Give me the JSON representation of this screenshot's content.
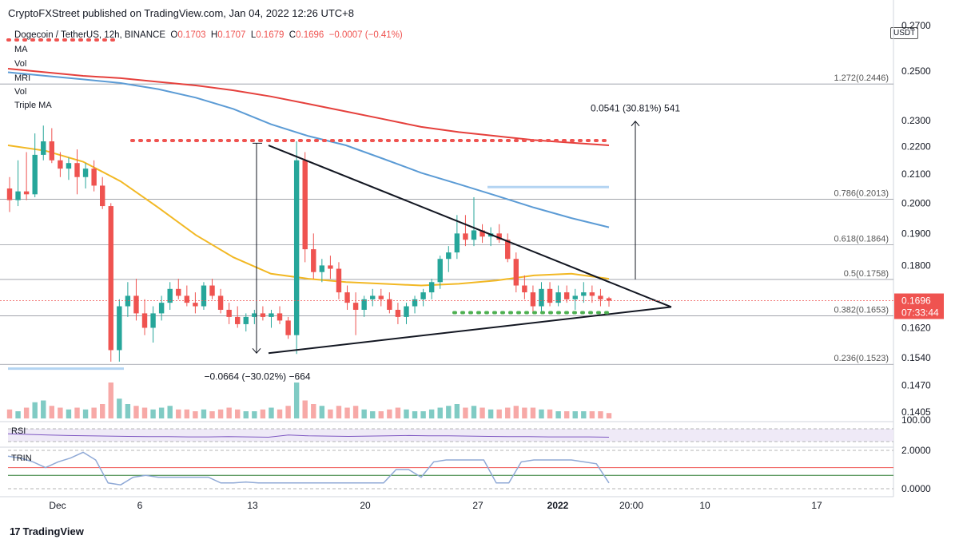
{
  "header": {
    "published": "CryptoFXStreet published on TradingView.com, Jan 04, 2022 12:26 UTC+8"
  },
  "legend": {
    "symbol": "Dogecoin / TetherUS, 12h, BINANCE",
    "o_label": "O",
    "o": "0.1703",
    "h_label": "H",
    "h": "0.1707",
    "l_label": "L",
    "l": "0.1679",
    "c_label": "C",
    "c": "0.1696",
    "change": "−0.0007 (−0.41%)",
    "indicators": [
      "MA",
      "Vol",
      "MRI",
      "Vol",
      "Triple MA"
    ]
  },
  "axis": {
    "currency": "USDT",
    "price_ticks": [
      "0.2500",
      "0.2300",
      "0.2200",
      "0.2100",
      "0.2000",
      "0.1900",
      "0.1800",
      "0.1620",
      "0.1540",
      "0.1470",
      "0.1405"
    ],
    "top_partial": "0.2700",
    "last_price": "0.1696",
    "countdown": "07:33:44",
    "rsi_tick": "100.00",
    "trin_ticks": [
      "2.0000",
      "0.0000"
    ],
    "time_ticks": [
      "Dec",
      "6",
      "13",
      "20",
      "27",
      "2022",
      "20:00",
      "10",
      "17"
    ]
  },
  "fib": [
    {
      "label": "1.272(0.2446)",
      "value": 0.2446
    },
    {
      "label": "0.786(0.2013)",
      "value": 0.2013
    },
    {
      "label": "0.618(0.1864)",
      "value": 0.1864
    },
    {
      "label": "0.5(0.1758)",
      "value": 0.1758
    },
    {
      "label": "0.382(0.1653)",
      "value": 0.1653
    },
    {
      "label": "0.236(0.1523)",
      "value": 0.1523
    }
  ],
  "annotations": {
    "target": "0.0541 (30.81%) 541",
    "drop": "−0.0664 (−30.02%) −664"
  },
  "panes": {
    "rsi_label": "RSI",
    "trin_label": "TRIN"
  },
  "footer": {
    "brand": "TradingView"
  },
  "colors": {
    "up": "#26a69a",
    "down": "#ef5350",
    "ma_red": "#e5403c",
    "ma_blue": "#5b9bd5",
    "ma_yellow": "#f2b824",
    "rsi": "#7e57c2",
    "trin": "#8fa9d6"
  },
  "chart_data": {
    "type": "candlestick",
    "title": "Dogecoin / TetherUS, 12h, BINANCE",
    "pattern": "symmetrical triangle",
    "candles": [
      {
        "o": 0.205,
        "h": 0.209,
        "l": 0.197,
        "c": 0.201
      },
      {
        "o": 0.201,
        "h": 0.215,
        "l": 0.199,
        "c": 0.204
      },
      {
        "o": 0.204,
        "h": 0.218,
        "l": 0.201,
        "c": 0.203
      },
      {
        "o": 0.203,
        "h": 0.225,
        "l": 0.202,
        "c": 0.217
      },
      {
        "o": 0.217,
        "h": 0.228,
        "l": 0.215,
        "c": 0.222
      },
      {
        "o": 0.222,
        "h": 0.227,
        "l": 0.214,
        "c": 0.215
      },
      {
        "o": 0.215,
        "h": 0.218,
        "l": 0.209,
        "c": 0.212
      },
      {
        "o": 0.212,
        "h": 0.216,
        "l": 0.208,
        "c": 0.214
      },
      {
        "o": 0.214,
        "h": 0.219,
        "l": 0.203,
        "c": 0.209
      },
      {
        "o": 0.209,
        "h": 0.214,
        "l": 0.205,
        "c": 0.212
      },
      {
        "o": 0.212,
        "h": 0.215,
        "l": 0.204,
        "c": 0.206
      },
      {
        "o": 0.206,
        "h": 0.209,
        "l": 0.198,
        "c": 0.199
      },
      {
        "o": 0.199,
        "h": 0.2,
        "l": 0.153,
        "c": 0.156
      },
      {
        "o": 0.156,
        "h": 0.17,
        "l": 0.153,
        "c": 0.168
      },
      {
        "o": 0.168,
        "h": 0.175,
        "l": 0.165,
        "c": 0.171
      },
      {
        "o": 0.171,
        "h": 0.176,
        "l": 0.164,
        "c": 0.166
      },
      {
        "o": 0.166,
        "h": 0.17,
        "l": 0.16,
        "c": 0.162
      },
      {
        "o": 0.162,
        "h": 0.168,
        "l": 0.158,
        "c": 0.166
      },
      {
        "o": 0.166,
        "h": 0.171,
        "l": 0.164,
        "c": 0.169
      },
      {
        "o": 0.169,
        "h": 0.175,
        "l": 0.167,
        "c": 0.173
      },
      {
        "o": 0.173,
        "h": 0.176,
        "l": 0.17,
        "c": 0.171
      },
      {
        "o": 0.171,
        "h": 0.174,
        "l": 0.168,
        "c": 0.169
      },
      {
        "o": 0.169,
        "h": 0.172,
        "l": 0.166,
        "c": 0.168
      },
      {
        "o": 0.168,
        "h": 0.175,
        "l": 0.167,
        "c": 0.174
      },
      {
        "o": 0.174,
        "h": 0.176,
        "l": 0.17,
        "c": 0.171
      },
      {
        "o": 0.171,
        "h": 0.173,
        "l": 0.166,
        "c": 0.167
      },
      {
        "o": 0.167,
        "h": 0.169,
        "l": 0.163,
        "c": 0.165
      },
      {
        "o": 0.165,
        "h": 0.168,
        "l": 0.162,
        "c": 0.163
      },
      {
        "o": 0.163,
        "h": 0.166,
        "l": 0.161,
        "c": 0.165
      },
      {
        "o": 0.165,
        "h": 0.167,
        "l": 0.163,
        "c": 0.166
      },
      {
        "o": 0.166,
        "h": 0.168,
        "l": 0.164,
        "c": 0.165
      },
      {
        "o": 0.165,
        "h": 0.167,
        "l": 0.162,
        "c": 0.166
      },
      {
        "o": 0.166,
        "h": 0.168,
        "l": 0.163,
        "c": 0.164
      },
      {
        "o": 0.164,
        "h": 0.165,
        "l": 0.159,
        "c": 0.16
      },
      {
        "o": 0.16,
        "h": 0.222,
        "l": 0.155,
        "c": 0.215
      },
      {
        "o": 0.215,
        "h": 0.218,
        "l": 0.181,
        "c": 0.185
      },
      {
        "o": 0.185,
        "h": 0.19,
        "l": 0.176,
        "c": 0.178
      },
      {
        "o": 0.178,
        "h": 0.182,
        "l": 0.175,
        "c": 0.18
      },
      {
        "o": 0.18,
        "h": 0.183,
        "l": 0.176,
        "c": 0.179
      },
      {
        "o": 0.179,
        "h": 0.181,
        "l": 0.17,
        "c": 0.172
      },
      {
        "o": 0.172,
        "h": 0.174,
        "l": 0.167,
        "c": 0.169
      },
      {
        "o": 0.169,
        "h": 0.172,
        "l": 0.16,
        "c": 0.167
      },
      {
        "o": 0.167,
        "h": 0.171,
        "l": 0.165,
        "c": 0.17
      },
      {
        "o": 0.17,
        "h": 0.173,
        "l": 0.168,
        "c": 0.171
      },
      {
        "o": 0.171,
        "h": 0.173,
        "l": 0.168,
        "c": 0.17
      },
      {
        "o": 0.17,
        "h": 0.172,
        "l": 0.166,
        "c": 0.167
      },
      {
        "o": 0.167,
        "h": 0.169,
        "l": 0.163,
        "c": 0.165
      },
      {
        "o": 0.165,
        "h": 0.169,
        "l": 0.163,
        "c": 0.168
      },
      {
        "o": 0.168,
        "h": 0.171,
        "l": 0.166,
        "c": 0.17
      },
      {
        "o": 0.17,
        "h": 0.173,
        "l": 0.168,
        "c": 0.172
      },
      {
        "o": 0.172,
        "h": 0.176,
        "l": 0.17,
        "c": 0.175
      },
      {
        "o": 0.175,
        "h": 0.183,
        "l": 0.173,
        "c": 0.182
      },
      {
        "o": 0.182,
        "h": 0.186,
        "l": 0.178,
        "c": 0.184
      },
      {
        "o": 0.184,
        "h": 0.196,
        "l": 0.182,
        "c": 0.19
      },
      {
        "o": 0.19,
        "h": 0.196,
        "l": 0.186,
        "c": 0.188
      },
      {
        "o": 0.188,
        "h": 0.202,
        "l": 0.186,
        "c": 0.191
      },
      {
        "o": 0.191,
        "h": 0.193,
        "l": 0.187,
        "c": 0.189
      },
      {
        "o": 0.189,
        "h": 0.192,
        "l": 0.186,
        "c": 0.19
      },
      {
        "o": 0.19,
        "h": 0.193,
        "l": 0.187,
        "c": 0.188
      },
      {
        "o": 0.188,
        "h": 0.19,
        "l": 0.181,
        "c": 0.182
      },
      {
        "o": 0.182,
        "h": 0.184,
        "l": 0.172,
        "c": 0.174
      },
      {
        "o": 0.174,
        "h": 0.177,
        "l": 0.17,
        "c": 0.172
      },
      {
        "o": 0.172,
        "h": 0.174,
        "l": 0.166,
        "c": 0.168
      },
      {
        "o": 0.168,
        "h": 0.175,
        "l": 0.166,
        "c": 0.173
      },
      {
        "o": 0.173,
        "h": 0.175,
        "l": 0.168,
        "c": 0.169
      },
      {
        "o": 0.169,
        "h": 0.174,
        "l": 0.168,
        "c": 0.172
      },
      {
        "o": 0.172,
        "h": 0.174,
        "l": 0.169,
        "c": 0.17
      },
      {
        "o": 0.17,
        "h": 0.173,
        "l": 0.167,
        "c": 0.171
      },
      {
        "o": 0.171,
        "h": 0.175,
        "l": 0.169,
        "c": 0.172
      },
      {
        "o": 0.172,
        "h": 0.174,
        "l": 0.169,
        "c": 0.171
      },
      {
        "o": 0.171,
        "h": 0.173,
        "l": 0.168,
        "c": 0.17
      },
      {
        "o": 0.1703,
        "h": 0.1707,
        "l": 0.1679,
        "c": 0.1696
      }
    ],
    "volume": [
      0.25,
      0.2,
      0.3,
      0.45,
      0.5,
      0.35,
      0.3,
      0.25,
      0.3,
      0.25,
      0.3,
      0.4,
      1.0,
      0.55,
      0.4,
      0.35,
      0.3,
      0.25,
      0.3,
      0.35,
      0.25,
      0.25,
      0.2,
      0.25,
      0.2,
      0.25,
      0.3,
      0.25,
      0.2,
      0.2,
      0.25,
      0.3,
      0.25,
      0.35,
      1.0,
      0.5,
      0.4,
      0.35,
      0.25,
      0.35,
      0.3,
      0.35,
      0.25,
      0.2,
      0.2,
      0.25,
      0.3,
      0.25,
      0.2,
      0.2,
      0.25,
      0.3,
      0.35,
      0.4,
      0.3,
      0.35,
      0.3,
      0.25,
      0.25,
      0.3,
      0.35,
      0.3,
      0.3,
      0.25,
      0.25,
      0.2,
      0.2,
      0.2,
      0.2,
      0.2,
      0.2,
      0.15
    ],
    "ma_red": [
      0.251,
      0.2495,
      0.248,
      0.247,
      0.2455,
      0.244,
      0.242,
      0.2395,
      0.2365,
      0.2335,
      0.2305,
      0.2275,
      0.2255,
      0.224,
      0.2225,
      0.2215,
      0.2205
    ],
    "ma_blue": [
      0.2495,
      0.248,
      0.2465,
      0.245,
      0.2425,
      0.239,
      0.2345,
      0.2285,
      0.224,
      0.2205,
      0.2155,
      0.2105,
      0.2065,
      0.2025,
      0.1985,
      0.195,
      0.192
    ],
    "ma_yellow": [
      0.2205,
      0.2185,
      0.2145,
      0.2075,
      0.1985,
      0.1895,
      0.1825,
      0.1775,
      0.176,
      0.175,
      0.1745,
      0.174,
      0.1745,
      0.1755,
      0.177,
      0.1775,
      0.176
    ],
    "triangle": {
      "apex_price": 0.1678,
      "upper_start": 0.2205,
      "lower_start": 0.1552
    },
    "resistance_dotted": 0.2223,
    "support_dotted": 0.1662,
    "rsi": [
      62,
      60,
      58,
      56,
      55,
      54,
      53,
      52,
      52,
      51,
      51,
      52,
      51,
      50,
      58,
      55,
      54,
      53,
      54,
      55,
      56,
      55,
      55,
      54,
      53,
      52,
      52,
      51,
      51,
      51,
      50
    ],
    "trin": [
      1.7,
      1.6,
      1.4,
      1.1,
      1.4,
      1.6,
      1.9,
      1.5,
      0.3,
      0.2,
      0.6,
      0.7,
      0.6,
      0.6,
      0.6,
      0.6,
      0.6,
      0.3,
      0.3,
      0.35,
      0.3,
      0.3,
      0.3,
      0.3,
      0.3,
      0.3,
      0.3,
      0.3,
      0.3,
      0.3,
      0.3,
      1.0,
      1.0,
      0.6,
      1.4,
      1.5,
      1.5,
      1.5,
      1.5,
      0.3,
      0.3,
      1.4,
      1.5,
      1.5,
      1.5,
      1.5,
      1.4,
      1.3,
      0.3
    ]
  }
}
